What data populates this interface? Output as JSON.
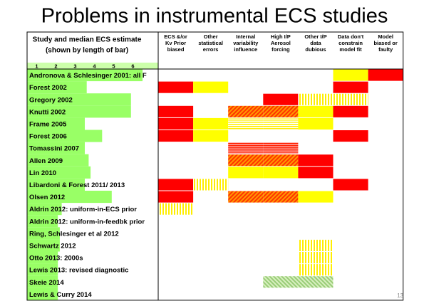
{
  "title": "Problems in instrumental ECS studies",
  "header": {
    "study": "Study and median ECS estimate",
    "study_sub": "(shown by length of bar)",
    "columns": [
      "ECS &/or Kv Prior biased",
      "Other statistical errors",
      "Internal variability influence",
      "High I/P Aerosol forcing",
      "Other I/P data dubious",
      "Data don't constrain model fit",
      "Model biased or faulty"
    ]
  },
  "scale": [
    1,
    2,
    3,
    4,
    5,
    6
  ],
  "bar_color": "#99ff66",
  "cell_styles": {
    "R": "#ff0000",
    "Y": "#ffff00",
    "hY": "url(#hatchY)",
    "hR": "url(#hatchR)",
    "sY": "url(#stripeY)",
    "sR": "url(#stripeR)",
    "hG": "url(#hatchG)"
  },
  "rows": [
    {
      "study": "Andronova & Schlesinger 2001: all F",
      "ecs": 6.0,
      "cells": [
        null,
        null,
        null,
        null,
        null,
        "Y",
        "R"
      ]
    },
    {
      "study": "Forest 2002",
      "ecs": 3.1,
      "cells": [
        "R",
        "Y",
        null,
        null,
        null,
        "R",
        null
      ]
    },
    {
      "study": "Gregory 2002",
      "ecs": 5.4,
      "cells": [
        null,
        null,
        null,
        "R",
        "hY",
        "hY",
        null
      ]
    },
    {
      "study": "Knutti 2002",
      "ecs": 5.4,
      "cells": [
        "R",
        null,
        "hR",
        "hR",
        "Y",
        "R",
        null
      ]
    },
    {
      "study": "Frame 2005",
      "ecs": 3.0,
      "cells": [
        "R",
        "Y",
        "sY",
        "sY",
        "Y",
        null,
        null
      ]
    },
    {
      "study": "Forest 2006",
      "ecs": 3.9,
      "cells": [
        "R",
        "Y",
        null,
        null,
        null,
        "R",
        null
      ]
    },
    {
      "study": "Tomassini 2007",
      "ecs": 3.0,
      "cells": [
        null,
        null,
        "sR",
        "sR",
        null,
        null,
        null
      ]
    },
    {
      "study": "Allen 2009",
      "ecs": 3.2,
      "cells": [
        null,
        null,
        "hR",
        "hR",
        "R",
        null,
        null
      ]
    },
    {
      "study": "Lin 2010",
      "ecs": 3.3,
      "cells": [
        null,
        null,
        "Y",
        "Y",
        "R",
        null,
        null
      ]
    },
    {
      "study": "Libardoni & Forest 2011/ 2013",
      "ecs": 3.0,
      "cells": [
        "R",
        "hY",
        null,
        null,
        null,
        "R",
        null
      ]
    },
    {
      "study": "Olsen 2012",
      "ecs": 4.4,
      "cells": [
        "R",
        null,
        "hR",
        "hR",
        "Y",
        null,
        null
      ]
    },
    {
      "study": "Aldrin 2012: uniform-in-ECS prior",
      "ecs": 1.8,
      "cells": [
        "hY",
        null,
        null,
        null,
        null,
        null,
        null
      ]
    },
    {
      "study": "Aldrin 2012: uniform-in-feedbk prior",
      "ecs": 1.6,
      "cells": [
        null,
        null,
        null,
        null,
        null,
        null,
        null
      ]
    },
    {
      "study": "Ring, Schlesinger et al 2012",
      "ecs": 1.7,
      "cells": [
        null,
        null,
        null,
        null,
        null,
        null,
        null
      ]
    },
    {
      "study": "Schwartz 2012",
      "ecs": 1.7,
      "cells": [
        null,
        null,
        null,
        null,
        "hY",
        null,
        null
      ]
    },
    {
      "study": "Otto 2013: 2000s",
      "ecs": 1.6,
      "cells": [
        null,
        null,
        null,
        null,
        "hY",
        null,
        null
      ]
    },
    {
      "study": "Lewis 2013: revised diagnostic",
      "ecs": 1.6,
      "cells": [
        null,
        null,
        null,
        null,
        "hY",
        null,
        null
      ]
    },
    {
      "study": "Skeie 2014",
      "ecs": 1.6,
      "cells": [
        null,
        null,
        null,
        "hG",
        "hG",
        null,
        null
      ]
    },
    {
      "study": "Lewis & Curry 2014",
      "ecs": 1.6,
      "cells": [
        null,
        null,
        null,
        null,
        null,
        null,
        null
      ]
    }
  ],
  "page_number": "13"
}
